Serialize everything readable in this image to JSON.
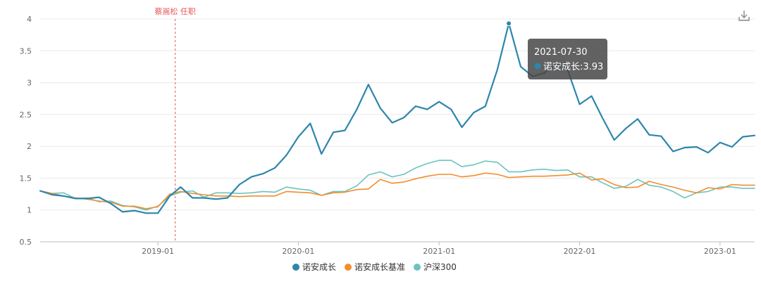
{
  "chart_data": {
    "type": "line",
    "title": "",
    "xlabel": "",
    "ylabel": "",
    "ylim": [
      0.5,
      4
    ],
    "yticks": [
      0.5,
      1,
      1.5,
      2,
      2.5,
      3,
      3.5,
      4
    ],
    "ytick_labels": [
      "0.5",
      "1",
      "1.5",
      "2",
      "2.5",
      "3",
      "3.5",
      "4"
    ],
    "xlim": [
      "2018-03-01",
      "2023-04-01"
    ],
    "xticks": [
      {
        "date": "2019-01-01",
        "label": "2019-01"
      },
      {
        "date": "2020-01-01",
        "label": "2020-01"
      },
      {
        "date": "2021-01-01",
        "label": "2021-01"
      },
      {
        "date": "2022-01-01",
        "label": "2022-01"
      },
      {
        "date": "2023-01-01",
        "label": "2023-01"
      }
    ],
    "grid": true,
    "legend_position": "bottom-center",
    "x": [
      "2018-03-01",
      "2018-04-01",
      "2018-05-01",
      "2018-06-01",
      "2018-07-01",
      "2018-08-01",
      "2018-09-01",
      "2018-10-01",
      "2018-11-01",
      "2018-12-01",
      "2019-01-01",
      "2019-02-01",
      "2019-03-01",
      "2019-04-01",
      "2019-05-01",
      "2019-06-01",
      "2019-07-01",
      "2019-08-01",
      "2019-09-01",
      "2019-10-01",
      "2019-11-01",
      "2019-12-01",
      "2020-01-01",
      "2020-02-01",
      "2020-03-01",
      "2020-04-01",
      "2020-05-01",
      "2020-06-01",
      "2020-07-01",
      "2020-08-01",
      "2020-09-01",
      "2020-10-01",
      "2020-11-01",
      "2020-12-01",
      "2021-01-01",
      "2021-02-01",
      "2021-03-01",
      "2021-04-01",
      "2021-05-01",
      "2021-06-01",
      "2021-07-01",
      "2021-08-01",
      "2021-09-01",
      "2021-10-01",
      "2021-11-01",
      "2021-12-01",
      "2022-01-01",
      "2022-02-01",
      "2022-03-01",
      "2022-04-01",
      "2022-05-01",
      "2022-06-01",
      "2022-07-01",
      "2022-08-01",
      "2022-09-01",
      "2022-10-01",
      "2022-11-01",
      "2022-12-01",
      "2023-01-01",
      "2023-02-01",
      "2023-03-01",
      "2023-04-01"
    ],
    "series": [
      {
        "name": "诺安成长",
        "color": "#2e86ab",
        "values": [
          1.3,
          1.24,
          1.22,
          1.18,
          1.18,
          1.2,
          1.1,
          0.97,
          0.99,
          0.95,
          0.95,
          1.22,
          1.36,
          1.19,
          1.19,
          1.17,
          1.19,
          1.4,
          1.52,
          1.57,
          1.66,
          1.86,
          2.15,
          2.36,
          1.88,
          2.22,
          2.25,
          2.58,
          2.97,
          2.6,
          2.37,
          2.45,
          2.63,
          2.58,
          2.7,
          2.58,
          2.3,
          2.53,
          2.63,
          3.2,
          3.93,
          3.25,
          3.1,
          3.15,
          3.3,
          3.2,
          2.66,
          2.79,
          2.45,
          2.1,
          2.28,
          2.43,
          2.18,
          2.16,
          1.92,
          1.98,
          1.99,
          1.9,
          2.06,
          1.99,
          2.15,
          2.17
        ]
      },
      {
        "name": "诺安成长基准",
        "color": "#f28e2b",
        "values": [
          1.3,
          1.26,
          1.22,
          1.19,
          1.17,
          1.14,
          1.12,
          1.06,
          1.06,
          1.02,
          1.05,
          1.25,
          1.29,
          1.26,
          1.24,
          1.22,
          1.22,
          1.21,
          1.22,
          1.22,
          1.22,
          1.29,
          1.28,
          1.27,
          1.23,
          1.27,
          1.28,
          1.32,
          1.33,
          1.48,
          1.42,
          1.44,
          1.49,
          1.53,
          1.56,
          1.56,
          1.52,
          1.54,
          1.58,
          1.56,
          1.51,
          1.52,
          1.53,
          1.53,
          1.54,
          1.55,
          1.58,
          1.47,
          1.49,
          1.4,
          1.35,
          1.36,
          1.45,
          1.4,
          1.36,
          1.31,
          1.27,
          1.35,
          1.33,
          1.4,
          1.39,
          1.39
        ]
      },
      {
        "name": "沪深300",
        "color": "#6cc3bf",
        "values": [
          1.3,
          1.26,
          1.27,
          1.18,
          1.19,
          1.13,
          1.14,
          1.07,
          1.05,
          1.0,
          1.06,
          1.22,
          1.28,
          1.3,
          1.2,
          1.27,
          1.27,
          1.26,
          1.27,
          1.29,
          1.28,
          1.36,
          1.33,
          1.31,
          1.23,
          1.29,
          1.29,
          1.38,
          1.55,
          1.6,
          1.52,
          1.56,
          1.66,
          1.73,
          1.78,
          1.78,
          1.68,
          1.71,
          1.77,
          1.75,
          1.6,
          1.6,
          1.63,
          1.64,
          1.62,
          1.63,
          1.52,
          1.52,
          1.43,
          1.34,
          1.37,
          1.48,
          1.39,
          1.36,
          1.29,
          1.19,
          1.27,
          1.29,
          1.36,
          1.36,
          1.34,
          1.34
        ]
      }
    ],
    "annotations": [
      {
        "type": "vertical-line",
        "x": "2019-02-15",
        "text": "蔡嵩松 任职",
        "color": "#e4585a"
      }
    ],
    "tooltip": {
      "date": "2021-07-30",
      "series": "诺安成长",
      "value": "3.93",
      "text": "诺安成长:3.93",
      "color": "#2e86ab"
    }
  },
  "ui": {
    "download_icon": "download-icon"
  }
}
